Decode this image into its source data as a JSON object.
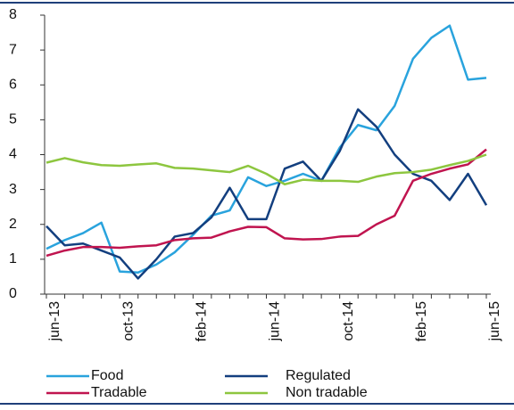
{
  "chart_data": {
    "type": "line",
    "categories": [
      "jun-13",
      null,
      null,
      null,
      "oct-13",
      null,
      null,
      null,
      "feb-14",
      null,
      null,
      null,
      "jun-14",
      null,
      null,
      null,
      "oct-14",
      null,
      null,
      null,
      "feb-15",
      null,
      null,
      null,
      "jun-15"
    ],
    "series": [
      {
        "name": "Food",
        "color": "#29a3dd",
        "values": [
          1.3,
          1.55,
          1.75,
          2.05,
          0.65,
          0.62,
          0.85,
          1.2,
          1.7,
          2.25,
          2.4,
          3.35,
          3.1,
          3.25,
          3.45,
          3.25,
          4.2,
          4.85,
          4.7,
          5.4,
          6.75,
          7.35,
          7.7,
          6.15,
          6.2
        ]
      },
      {
        "name": "Regulated",
        "color": "#133f7f",
        "values": [
          1.95,
          1.4,
          1.45,
          1.25,
          1.05,
          0.45,
          1.0,
          1.65,
          1.75,
          2.2,
          3.05,
          2.15,
          2.15,
          3.6,
          3.8,
          3.25,
          4.1,
          5.3,
          4.8,
          4.0,
          3.45,
          3.25,
          2.7,
          3.45,
          2.55
        ]
      },
      {
        "name": "Tradable",
        "color": "#c0144f",
        "values": [
          1.1,
          1.25,
          1.35,
          1.35,
          1.33,
          1.37,
          1.4,
          1.55,
          1.6,
          1.62,
          1.8,
          1.93,
          1.92,
          1.6,
          1.57,
          1.58,
          1.65,
          1.67,
          2.0,
          2.25,
          3.25,
          3.45,
          3.6,
          3.72,
          4.15
        ]
      },
      {
        "name": "Non tradable",
        "color": "#8dc63f",
        "values": [
          3.77,
          3.9,
          3.78,
          3.7,
          3.68,
          3.72,
          3.75,
          3.62,
          3.6,
          3.55,
          3.5,
          3.68,
          3.45,
          3.15,
          3.28,
          3.25,
          3.25,
          3.22,
          3.37,
          3.47,
          3.5,
          3.57,
          3.7,
          3.82,
          4.0
        ]
      }
    ],
    "ylim": [
      0,
      8
    ],
    "yticks": [
      0,
      1,
      2,
      3,
      4,
      5,
      6,
      7,
      8
    ],
    "legend": "bottom"
  }
}
